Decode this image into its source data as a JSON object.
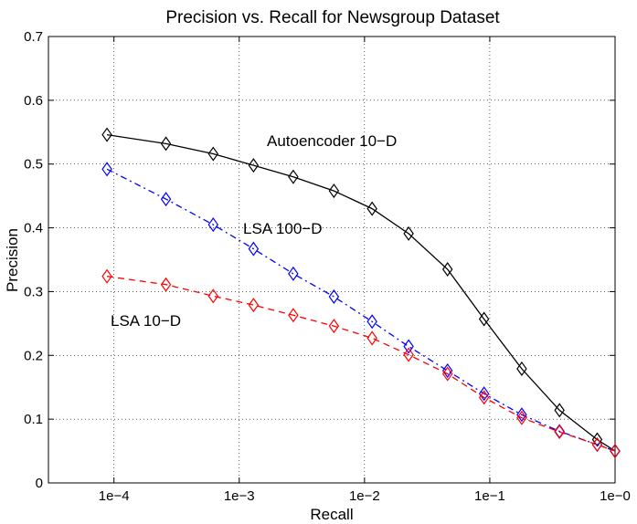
{
  "chart_data": {
    "type": "line",
    "title": "Precision vs. Recall for Newsgroup Dataset",
    "xlabel": "Recall",
    "ylabel": "Precision",
    "xscale": "log",
    "xlim": [
      3e-05,
      1
    ],
    "ylim": [
      0,
      0.7
    ],
    "grid": true,
    "x_tick_values": [
      0.0001,
      0.001,
      0.01,
      0.1,
      1
    ],
    "x_tick_labels": [
      "1e−4",
      "1e−3",
      "1e−2",
      "1e−1",
      "1e−0"
    ],
    "y_ticks": [
      0,
      0.1,
      0.2,
      0.3,
      0.4,
      0.5,
      0.6,
      0.7
    ],
    "y_tick_labels": [
      "0",
      "0.1",
      "0.2",
      "0.3",
      "0.4",
      "0.5",
      "0.6",
      "0.7"
    ],
    "series": [
      {
        "name": "Autoencoder 10−D",
        "color": "#000000",
        "line_style": "solid",
        "marker": "diamond",
        "x": [
          8.8e-05,
          0.00026,
          0.00062,
          0.0013,
          0.0027,
          0.0057,
          0.0115,
          0.0225,
          0.046,
          0.09,
          0.18,
          0.36,
          0.72,
          1.0
        ],
        "y": [
          0.546,
          0.532,
          0.516,
          0.498,
          0.48,
          0.458,
          0.43,
          0.391,
          0.335,
          0.257,
          0.179,
          0.114,
          0.068,
          0.05
        ]
      },
      {
        "name": "LSA 100−D",
        "color": "#0000ff",
        "line_style": "dashdot",
        "marker": "diamond",
        "x": [
          8.8e-05,
          0.00026,
          0.00062,
          0.0013,
          0.0027,
          0.0057,
          0.0115,
          0.0225,
          0.046,
          0.09,
          0.18,
          0.36,
          0.72,
          1.0
        ],
        "y": [
          0.492,
          0.445,
          0.405,
          0.367,
          0.328,
          0.292,
          0.253,
          0.214,
          0.176,
          0.14,
          0.107,
          0.081,
          0.06,
          0.05
        ]
      },
      {
        "name": "LSA 10−D",
        "color": "#ff0000",
        "line_style": "dashed",
        "marker": "diamond",
        "x": [
          8.8e-05,
          0.00026,
          0.00062,
          0.0013,
          0.0027,
          0.0057,
          0.0115,
          0.0225,
          0.046,
          0.09,
          0.18,
          0.36,
          0.72,
          1.0
        ],
        "y": [
          0.324,
          0.311,
          0.293,
          0.279,
          0.263,
          0.246,
          0.227,
          0.201,
          0.171,
          0.134,
          0.102,
          0.08,
          0.06,
          0.05
        ]
      }
    ],
    "annotations": [
      "Autoencoder 10−D",
      "LSA 100−D",
      "LSA 10−D"
    ]
  }
}
